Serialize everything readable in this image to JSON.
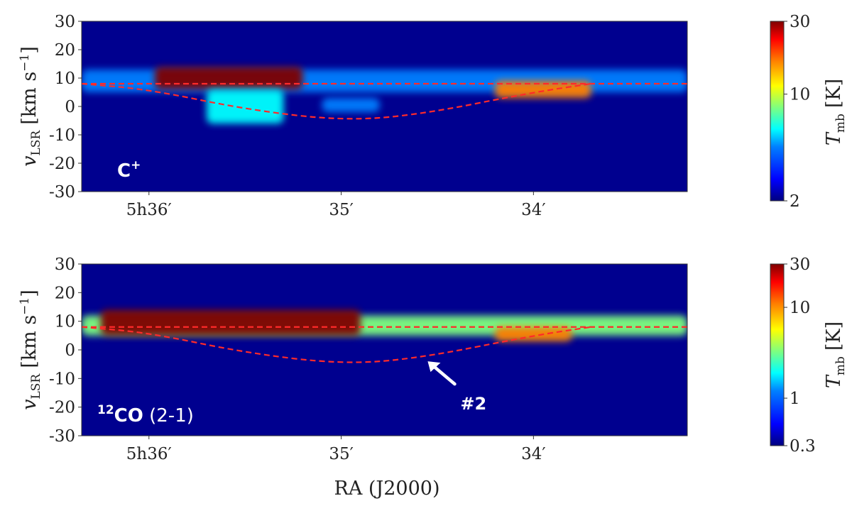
{
  "chart_data": [
    {
      "type": "heatmap",
      "panel_label": {
        "main": "C",
        "sup": "+"
      },
      "ylabel": {
        "var": "v",
        "sub": "LSR",
        "units": "[km s",
        "exp": "−1",
        "close": "]"
      },
      "xlabel": "",
      "x_ticks": [
        {
          "label": "5h36′",
          "ra_min": 36.0
        },
        {
          "label": "35′",
          "ra_min": 35.0
        },
        {
          "label": "34′",
          "ra_min": 34.0
        }
      ],
      "xlim_ra_min": [
        36.35,
        33.2
      ],
      "ylim": [
        -30,
        30
      ],
      "y_ticks": [
        30,
        20,
        10,
        0,
        -10,
        -20,
        -30
      ],
      "y_tick_labels": [
        "30",
        "20",
        "10",
        "0",
        "-10",
        "-20",
        "-30"
      ],
      "reference_lines": {
        "horizontal_v": 8,
        "arc": [
          {
            "ra_min": 36.35,
            "v": 8
          },
          {
            "ra_min": 36.0,
            "v": 6
          },
          {
            "ra_min": 35.5,
            "v": -1
          },
          {
            "ra_min": 35.0,
            "v": -5
          },
          {
            "ra_min": 34.6,
            "v": -3
          },
          {
            "ra_min": 34.0,
            "v": 5
          },
          {
            "ra_min": 33.7,
            "v": 8
          }
        ]
      },
      "emission_regions": [
        {
          "ra": [
            36.35,
            33.2
          ],
          "v": [
            5,
            13
          ],
          "intensity": 0.3
        },
        {
          "ra": [
            35.97,
            35.2
          ],
          "v": [
            6,
            14
          ],
          "intensity": 0.95
        },
        {
          "ra": [
            35.7,
            35.3
          ],
          "v": [
            -6,
            6
          ],
          "intensity": 0.35
        },
        {
          "ra": [
            35.1,
            34.8
          ],
          "v": [
            -2,
            3
          ],
          "intensity": 0.3
        },
        {
          "ra": [
            34.2,
            33.7
          ],
          "v": [
            3,
            9
          ],
          "intensity": 0.8
        }
      ],
      "colorbar": {
        "label": {
          "var": "T",
          "sub": "mb",
          "units": "[K]"
        },
        "scale": "log",
        "range": [
          2,
          30
        ],
        "ticks": [
          {
            "label": "30",
            "value": 30
          },
          {
            "label": "10",
            "value": 10
          },
          {
            "label": "2",
            "value": 2
          }
        ],
        "colormap": "jet"
      }
    },
    {
      "type": "heatmap",
      "panel_label": {
        "sup": "12",
        "main": "CO",
        "light": " (2-1)"
      },
      "ylabel": {
        "var": "v",
        "sub": "LSR",
        "units": "[km s",
        "exp": "−1",
        "close": "]"
      },
      "xlabel": "RA (J2000)",
      "x_ticks": [
        {
          "label": "5h36′",
          "ra_min": 36.0
        },
        {
          "label": "35′",
          "ra_min": 35.0
        },
        {
          "label": "34′",
          "ra_min": 34.0
        }
      ],
      "xlim_ra_min": [
        36.35,
        33.2
      ],
      "ylim": [
        -30,
        30
      ],
      "y_ticks": [
        30,
        20,
        10,
        0,
        -10,
        -20,
        -30
      ],
      "y_tick_labels": [
        "30",
        "20",
        "10",
        "0",
        "-10",
        "-20",
        "-30"
      ],
      "reference_lines": {
        "horizontal_v": 8,
        "arc": [
          {
            "ra_min": 36.35,
            "v": 8
          },
          {
            "ra_min": 36.0,
            "v": 6
          },
          {
            "ra_min": 35.5,
            "v": -1
          },
          {
            "ra_min": 35.0,
            "v": -5
          },
          {
            "ra_min": 34.6,
            "v": -3
          },
          {
            "ra_min": 34.0,
            "v": 5
          },
          {
            "ra_min": 33.7,
            "v": 8
          }
        ]
      },
      "emission_regions": [
        {
          "ra": [
            36.35,
            33.2
          ],
          "v": [
            5,
            12
          ],
          "intensity": 0.55
        },
        {
          "ra": [
            36.25,
            34.9
          ],
          "v": [
            5,
            14
          ],
          "intensity": 0.95
        },
        {
          "ra": [
            34.2,
            33.8
          ],
          "v": [
            3,
            8
          ],
          "intensity": 0.7
        }
      ],
      "annotation": {
        "text": "#2",
        "ra_min": 34.55,
        "v": -4
      },
      "colorbar": {
        "label": {
          "var": "T",
          "sub": "mb",
          "units": "[K]"
        },
        "scale": "log",
        "range": [
          0.3,
          30
        ],
        "ticks": [
          {
            "label": "30",
            "value": 30
          },
          {
            "label": "10",
            "value": 10
          },
          {
            "label": "1",
            "value": 1
          },
          {
            "label": "0.3",
            "value": 0.3
          }
        ],
        "colormap": "jet"
      }
    }
  ],
  "colors": {
    "background_cmap_low": "#00008f",
    "cmap_stops": [
      "#00007f",
      "#0000ff",
      "#007fff",
      "#00ffff",
      "#7fff7f",
      "#ffff00",
      "#ff7f00",
      "#ff0000",
      "#7f0000"
    ],
    "reference_line": "#ff2a2a",
    "annotation": "#ffffff"
  }
}
